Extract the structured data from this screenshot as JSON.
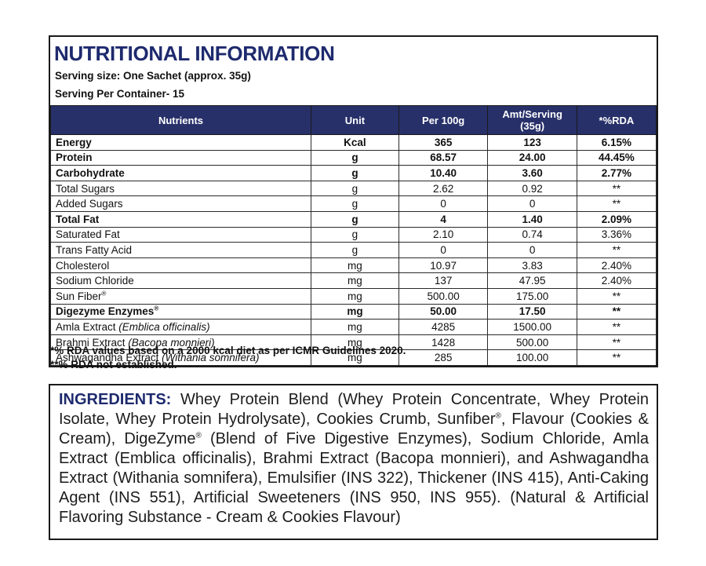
{
  "colors": {
    "brand_navy": "#1e2a6e",
    "table_header_bg": "#273069",
    "border_black": "#1a1a1a"
  },
  "panel": {
    "title": "NUTRITIONAL INFORMATION",
    "serving_size": "Serving size: One Sachet (approx. 35g)",
    "serving_per_container": "Serving Per Container- 15"
  },
  "table": {
    "headers": [
      "Nutrients",
      "Unit",
      "Per 100g",
      "Amt/Serving (35g)",
      "*%RDA"
    ],
    "rows": [
      {
        "nutrient": "Energy",
        "sup": "",
        "latin": "",
        "unit": "Kcal",
        "per100g": "365",
        "amt": "123",
        "rda": "6.15%",
        "bold": true
      },
      {
        "nutrient": "Protein",
        "sup": "",
        "latin": "",
        "unit": "g",
        "per100g": "68.57",
        "amt": "24.00",
        "rda": "44.45%",
        "bold": true
      },
      {
        "nutrient": "Carbohydrate",
        "sup": "",
        "latin": "",
        "unit": "g",
        "per100g": "10.40",
        "amt": "3.60",
        "rda": "2.77%",
        "bold": true
      },
      {
        "nutrient": "Total Sugars",
        "sup": "",
        "latin": "",
        "unit": "g",
        "per100g": "2.62",
        "amt": "0.92",
        "rda": "**",
        "bold": false
      },
      {
        "nutrient": "Added Sugars",
        "sup": "",
        "latin": "",
        "unit": "g",
        "per100g": "0",
        "amt": "0",
        "rda": "**",
        "bold": false
      },
      {
        "nutrient": "Total Fat",
        "sup": "",
        "latin": "",
        "unit": "g",
        "per100g": "4",
        "amt": "1.40",
        "rda": "2.09%",
        "bold": true
      },
      {
        "nutrient": "Saturated Fat",
        "sup": "",
        "latin": "",
        "unit": "g",
        "per100g": "2.10",
        "amt": "0.74",
        "rda": "3.36%",
        "bold": false
      },
      {
        "nutrient": "Trans Fatty Acid",
        "sup": "",
        "latin": "",
        "unit": "g",
        "per100g": "0",
        "amt": "0",
        "rda": "**",
        "bold": false
      },
      {
        "nutrient": "Cholesterol",
        "sup": "",
        "latin": "",
        "unit": "mg",
        "per100g": "10.97",
        "amt": "3.83",
        "rda": "2.40%",
        "bold": false
      },
      {
        "nutrient": "Sodium Chloride",
        "sup": "",
        "latin": "",
        "unit": "mg",
        "per100g": "137",
        "amt": "47.95",
        "rda": "2.40%",
        "bold": false
      },
      {
        "nutrient": "Sun Fiber",
        "sup": "®",
        "latin": "",
        "unit": "mg",
        "per100g": "500.00",
        "amt": "175.00",
        "rda": "**",
        "bold": false
      },
      {
        "nutrient": "Digezyme Enzymes",
        "sup": "®",
        "latin": "",
        "unit": "mg",
        "per100g": "50.00",
        "amt": "17.50",
        "rda": "**",
        "bold": true
      },
      {
        "nutrient": "Amla Extract ",
        "sup": "",
        "latin": "(Emblica officinalis)",
        "unit": "mg",
        "per100g": "4285",
        "amt": "1500.00",
        "rda": "**",
        "bold": false
      },
      {
        "nutrient": "Brahmi Extract ",
        "sup": "",
        "latin": "(Bacopa monnieri)",
        "unit": "mg",
        "per100g": "1428",
        "amt": "500.00",
        "rda": "**",
        "bold": false
      },
      {
        "nutrient": "Ashwagandha Extract ",
        "sup": "",
        "latin": "(Withania somnifera)",
        "unit": "mg",
        "per100g": "285",
        "amt": "100.00",
        "rda": "**",
        "bold": false
      }
    ]
  },
  "footnotes": {
    "line1": "*% RDA values based on a 2000 kcal diet as per ICMR Guidelines 2020.",
    "line2": "**% RDA not established."
  },
  "ingredients": {
    "label": "INGREDIENTS:",
    "segments": [
      {
        "text": " Whey Protein Blend (Whey Protein Concentrate, Whey Protein Isolate, Whey Protein Hydrolysate), Cookies Crumb, Sunfiber",
        "sup": false
      },
      {
        "text": "®",
        "sup": true
      },
      {
        "text": ", Flavour (Cookies & Cream), DigeZyme",
        "sup": false
      },
      {
        "text": "®",
        "sup": true
      },
      {
        "text": " (Blend of Five Digestive Enzymes), Sodium Chloride, Amla  Extract (Emblica officinalis), Brahmi Extract (Bacopa monnieri), and Ashwagandha Extract (Withania somnifera), Emulsifier (INS 322), Thickener (INS 415), Anti-Caking Agent (INS 551), Artificial Sweeteners (INS 950, INS 955). (Natural & Artificial Flavoring Substance - Cream & Cookies Flavour)",
        "sup": false
      }
    ]
  }
}
